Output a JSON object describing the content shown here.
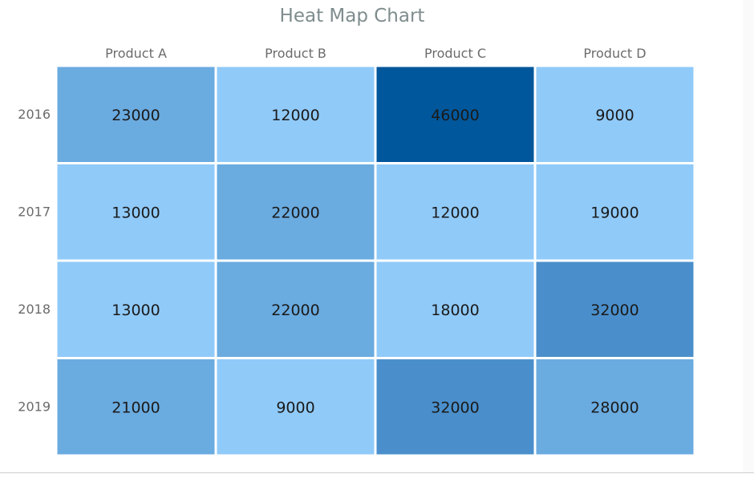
{
  "chart_data": {
    "type": "heatmap",
    "title": "Heat Map Chart",
    "x_categories": [
      "Product A",
      "Product B",
      "Product C",
      "Product D"
    ],
    "y_categories": [
      "2016",
      "2017",
      "2018",
      "2019"
    ],
    "values": [
      [
        23000,
        12000,
        46000,
        9000
      ],
      [
        13000,
        22000,
        12000,
        19000
      ],
      [
        13000,
        22000,
        18000,
        32000
      ],
      [
        21000,
        9000,
        32000,
        28000
      ]
    ],
    "color_ranges": [
      {
        "from": 0,
        "to": 20000,
        "color": "#90caf9"
      },
      {
        "from": 20000,
        "to": 30000,
        "color": "#6aabe0"
      },
      {
        "from": 30000,
        "to": 40000,
        "color": "#4a8fcb"
      },
      {
        "from": 40000,
        "to": 50000,
        "color": "#01579b"
      }
    ],
    "title_color": "#7f8c8d",
    "label_color": "#6b6b6b",
    "value_text_color": "#1a1a1a",
    "grid_line_color": "#ffffff",
    "legend": "none"
  }
}
